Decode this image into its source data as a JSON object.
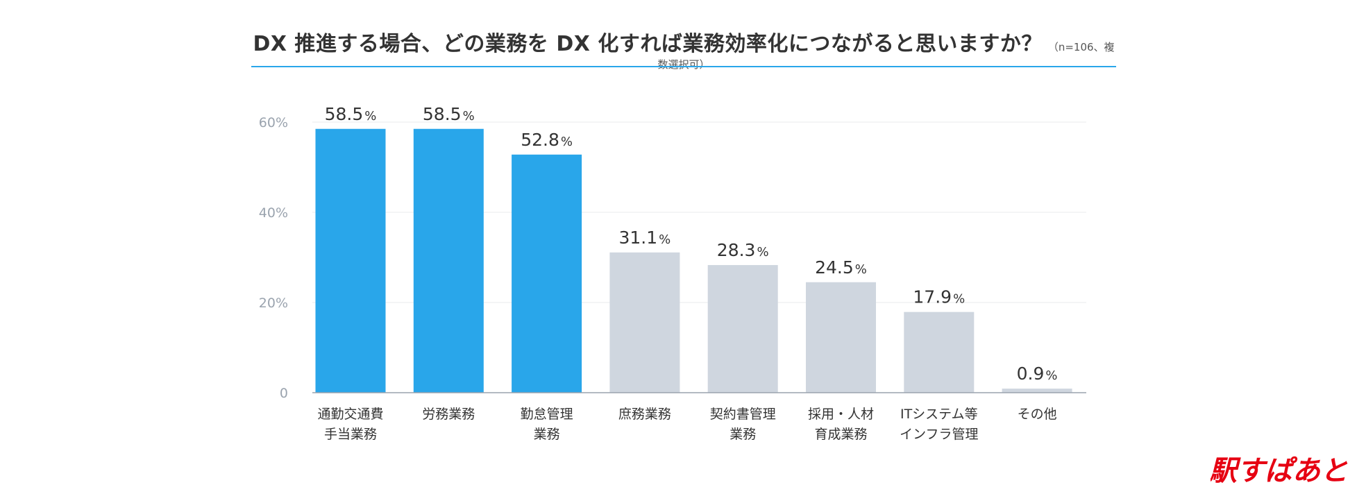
{
  "chart_data": {
    "type": "bar",
    "title": "DX 推進する場合、どの業務を DX 化すれば業務効率化につながると思いますか？",
    "subtitle": "（n=106、複数選択可）",
    "categories": [
      [
        "通勤交通費",
        "手当業務"
      ],
      [
        "労務業務"
      ],
      [
        "勤怠管理",
        "業務"
      ],
      [
        "庶務業務"
      ],
      [
        "契約書管理",
        "業務"
      ],
      [
        "採用・人材",
        "育成業務"
      ],
      [
        "ITシステム等",
        "インフラ管理"
      ],
      [
        "その他"
      ]
    ],
    "values": [
      58.5,
      58.5,
      52.8,
      31.1,
      28.3,
      24.5,
      17.9,
      0.9
    ],
    "value_labels": [
      "58.5",
      "58.5",
      "52.8",
      "31.1",
      "28.3",
      "24.5",
      "17.9",
      "0.9"
    ],
    "value_suffix": "%",
    "highlighted": [
      true,
      true,
      true,
      false,
      false,
      false,
      false,
      false
    ],
    "y_ticks": [
      0,
      20,
      40,
      60
    ],
    "y_tick_labels": [
      "0",
      "20%",
      "40%",
      "60%"
    ],
    "ylim": [
      0,
      60
    ],
    "grid": true,
    "legend": "none",
    "colors": {
      "highlight": "#29a6ea",
      "normal": "#cfd6df",
      "grid": "#e8ebee",
      "axis": "#9aa3ae",
      "title_rule": "#29a6ea"
    }
  },
  "brand": {
    "logo_text": "駅すぱあと",
    "logo_color": "#e60012"
  }
}
